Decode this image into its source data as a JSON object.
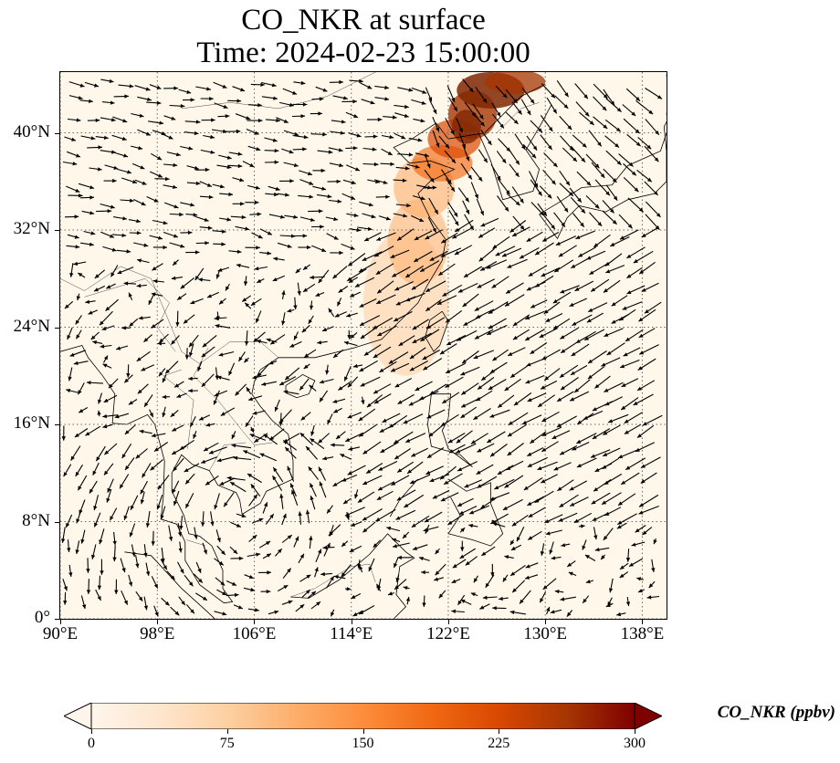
{
  "title_line1": "CO_NKR at surface",
  "title_line2": "Time: 2024-02-23 15:00:00",
  "map": {
    "lon_range": [
      90,
      140
    ],
    "lat_range": [
      0,
      45
    ],
    "gridlines": "dotted",
    "lon_ticks": [
      {
        "value": 90,
        "label": "90°E"
      },
      {
        "value": 98,
        "label": "98°E"
      },
      {
        "value": 106,
        "label": "106°E"
      },
      {
        "value": 114,
        "label": "114°E"
      },
      {
        "value": 122,
        "label": "122°E"
      },
      {
        "value": 130,
        "label": "130°E"
      },
      {
        "value": 138,
        "label": "138°E"
      }
    ],
    "lat_ticks": [
      {
        "value": 0,
        "label": "0°"
      },
      {
        "value": 8,
        "label": "8°N"
      },
      {
        "value": 16,
        "label": "16°N"
      },
      {
        "value": 24,
        "label": "24°N"
      },
      {
        "value": 32,
        "label": "32°N"
      },
      {
        "value": 40,
        "label": "40°N"
      }
    ],
    "plume_colors": [
      "#fff5eb",
      "#fdd0a2",
      "#fdae6b",
      "#f16913",
      "#d94801",
      "#a63603",
      "#7f2704"
    ],
    "wind_arrows": "black vectors"
  },
  "colorbar": {
    "label": "CO_NKR (ppbv)",
    "min": 0,
    "max": 300,
    "extend": "both",
    "ticks": [
      {
        "value": 0,
        "label": "0"
      },
      {
        "value": 75,
        "label": "75"
      },
      {
        "value": 150,
        "label": "150"
      },
      {
        "value": 225,
        "label": "225"
      },
      {
        "value": 300,
        "label": "300"
      }
    ],
    "colors": [
      "#fff5eb",
      "#fee6ce",
      "#fdd0a2",
      "#fdae6b",
      "#fd8d3c",
      "#f16913",
      "#d94801",
      "#a63603",
      "#7f0000"
    ]
  }
}
